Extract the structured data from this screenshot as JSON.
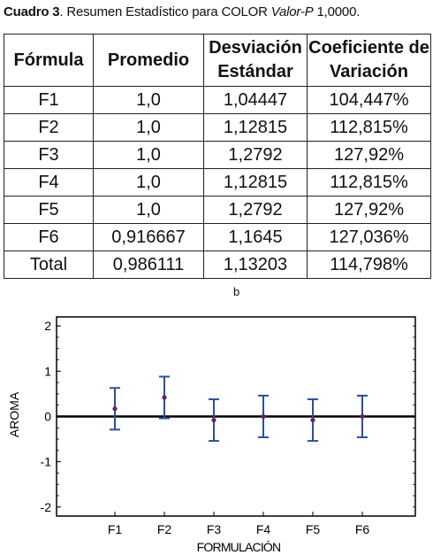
{
  "caption": {
    "label": "Cuadro 3",
    "text_a": ". Resumen Estadístico para COLOR ",
    "italic": "Valor-P",
    "text_b": " 1,0000."
  },
  "table": {
    "headers": [
      "Fórmula",
      "Promedio",
      "Desviación Estándar",
      "Coeficiente de Variación"
    ],
    "rows": [
      [
        "F1",
        "1,0",
        "1,04447",
        "104,447%"
      ],
      [
        "F2",
        "1,0",
        "1,12815",
        "112,815%"
      ],
      [
        "F3",
        "1,0",
        "1,2792",
        "127,92%"
      ],
      [
        "F4",
        "1,0",
        "1,12815",
        "112,815%"
      ],
      [
        "F5",
        "1,0",
        "1,2792",
        "127,92%"
      ],
      [
        "F6",
        "0,916667",
        "1,1645",
        "127,036%"
      ],
      [
        "Total",
        "0,986111",
        "1,13203",
        "114,798%"
      ]
    ]
  },
  "subfigure_label": "b",
  "chart_data": {
    "type": "scatter",
    "xlabel": "FORMULACIÓN",
    "ylabel": "AROMA",
    "categories": [
      "F1",
      "F2",
      "F3",
      "F4",
      "F5",
      "F6"
    ],
    "ylim": [
      -2.2,
      2.2
    ],
    "yticks": [
      "2",
      "1",
      "0",
      "-1",
      "-2"
    ],
    "yticks_values": [
      2,
      1,
      0,
      -1,
      -2
    ],
    "means": [
      0.17,
      0.42,
      -0.08,
      0.0,
      -0.08,
      0.0
    ],
    "lower": [
      -0.29,
      -0.04,
      -0.54,
      -0.46,
      -0.54,
      -0.46
    ],
    "upper": [
      0.63,
      0.88,
      0.38,
      0.46,
      0.38,
      0.46
    ],
    "zero_line": 0,
    "colors": {
      "errorbar": "#2b4f9a",
      "point": "#6a1f6a",
      "zero": "#000000"
    }
  }
}
